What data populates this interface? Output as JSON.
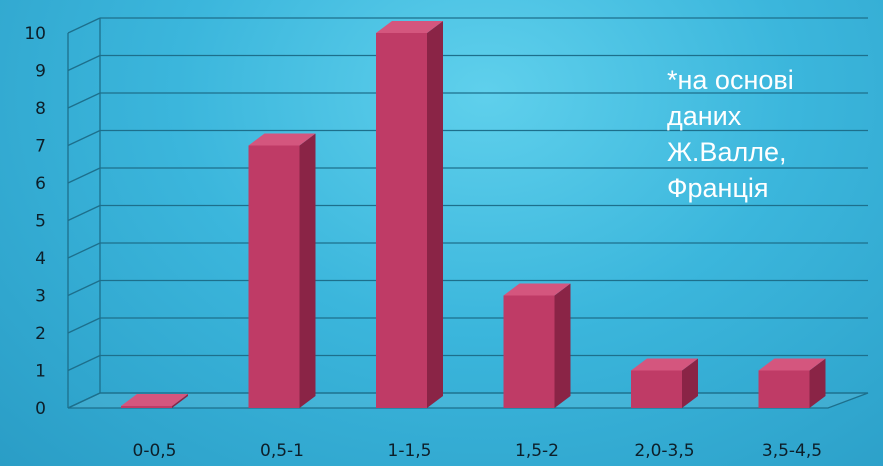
{
  "chart_data": {
    "type": "bar",
    "categories": [
      "0-0,5",
      "0,5-1",
      "1-1,5",
      "1,5-2",
      "2,0-3,5",
      "3,5-4,5"
    ],
    "values": [
      0,
      7,
      10,
      3,
      1,
      1
    ],
    "title": "",
    "xlabel": "",
    "ylabel": "",
    "ylim": [
      0,
      10
    ],
    "yticks": [
      0,
      1,
      2,
      3,
      4,
      5,
      6,
      7,
      8,
      9,
      10
    ],
    "grid": true,
    "annotation": "*на основі\nданих\nЖ.Валле,\nФранція"
  },
  "colors": {
    "bar_front": "#bf3b66",
    "bar_side": "#8a2446",
    "bar_top": "#d4567e",
    "gridline": "#1d6f8c"
  }
}
